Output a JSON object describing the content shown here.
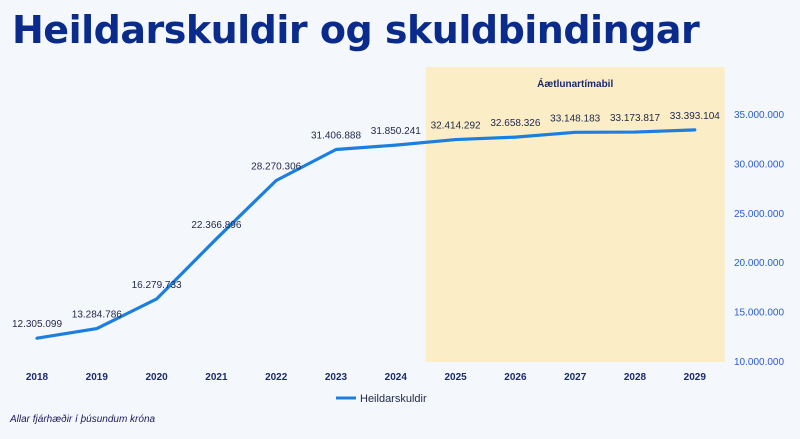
{
  "title": "Heildarskuldir og skuldbindingar",
  "footnote": "Allar fjárhæðir í þúsundum króna",
  "colors": {
    "line": "#1c7fe0",
    "shade": "#fbeec6",
    "title": "#0a2a8c",
    "ytick": "#2a5bd7"
  },
  "chart_data": {
    "type": "line",
    "categories": [
      "2018",
      "2019",
      "2020",
      "2021",
      "2022",
      "2023",
      "2024",
      "2025",
      "2026",
      "2027",
      "2028",
      "2029"
    ],
    "series": [
      {
        "name": "Heildarskuldir",
        "values": [
          12305099,
          13284786,
          16279733,
          22366896,
          28270306,
          31406888,
          31850241,
          32414292,
          32658326,
          33148183,
          33173817,
          33393104
        ],
        "labels": [
          "12.305.099",
          "13.284.786",
          "16.279.733",
          "22.366.896",
          "28.270.306",
          "31.406.888",
          "31.850.241",
          "32.414.292",
          "32.658.326",
          "33.148.183",
          "33.173.817",
          "33.393.104"
        ]
      }
    ],
    "ylim": [
      10000000,
      35000000
    ],
    "yticks": [
      10000000,
      15000000,
      20000000,
      25000000,
      30000000,
      35000000
    ],
    "ytick_labels": [
      "10.000.000",
      "15.000.000",
      "20.000.000",
      "25.000.000",
      "30.000.000",
      "35.000.000"
    ],
    "y_axis_side": "right",
    "grid": false,
    "legend": "bottom-center",
    "shaded_region": {
      "label": "Áætlunartímabil",
      "from": "2025",
      "to": "2029"
    }
  }
}
